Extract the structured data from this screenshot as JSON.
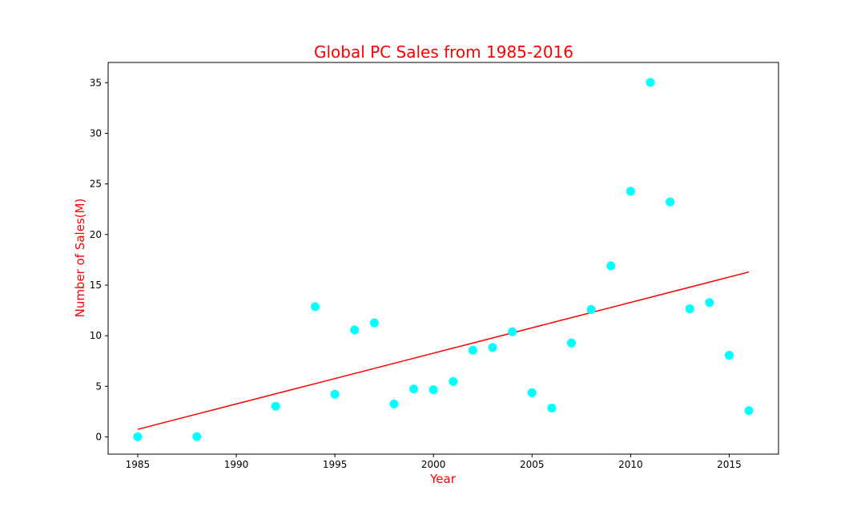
{
  "chart_data": {
    "type": "scatter",
    "title": "Global PC Sales from 1985-2016",
    "xlabel": "Year",
    "ylabel": "Number of Sales(M)",
    "xlim": [
      1983.5,
      2017.5
    ],
    "ylim": [
      -1.7,
      37.0
    ],
    "x_ticks": [
      1985,
      1990,
      1995,
      2000,
      2005,
      2010,
      2015
    ],
    "y_ticks": [
      0,
      5,
      10,
      15,
      20,
      25,
      30,
      35
    ],
    "grid": false,
    "series": [
      {
        "type": "scatter",
        "color": "#00ffff",
        "points": [
          {
            "x": 1985,
            "y": 0.02
          },
          {
            "x": 1988,
            "y": 0.03
          },
          {
            "x": 1992,
            "y": 3.03
          },
          {
            "x": 1994,
            "y": 12.87
          },
          {
            "x": 1995,
            "y": 4.22
          },
          {
            "x": 1996,
            "y": 10.58
          },
          {
            "x": 1997,
            "y": 11.27
          },
          {
            "x": 1998,
            "y": 3.26
          },
          {
            "x": 1999,
            "y": 4.74
          },
          {
            "x": 2000,
            "y": 4.66
          },
          {
            "x": 2001,
            "y": 5.47
          },
          {
            "x": 2002,
            "y": 8.57
          },
          {
            "x": 2003,
            "y": 8.84
          },
          {
            "x": 2004,
            "y": 10.39
          },
          {
            "x": 2005,
            "y": 4.37
          },
          {
            "x": 2006,
            "y": 2.85
          },
          {
            "x": 2007,
            "y": 9.28
          },
          {
            "x": 2008,
            "y": 12.59
          },
          {
            "x": 2009,
            "y": 16.91
          },
          {
            "x": 2010,
            "y": 24.28
          },
          {
            "x": 2011,
            "y": 35.03
          },
          {
            "x": 2012,
            "y": 23.22
          },
          {
            "x": 2013,
            "y": 12.66
          },
          {
            "x": 2014,
            "y": 13.28
          },
          {
            "x": 2015,
            "y": 8.07
          },
          {
            "x": 2016,
            "y": 2.6
          }
        ]
      },
      {
        "type": "line",
        "color": "#ff0000",
        "points": [
          {
            "x": 1985,
            "y": 0.75
          },
          {
            "x": 2016,
            "y": 16.3
          }
        ]
      }
    ]
  },
  "colors": {
    "title": "#ff0000",
    "axis_titles": "#ff0000",
    "marker": "#00ffff",
    "trend": "#ff0000"
  }
}
